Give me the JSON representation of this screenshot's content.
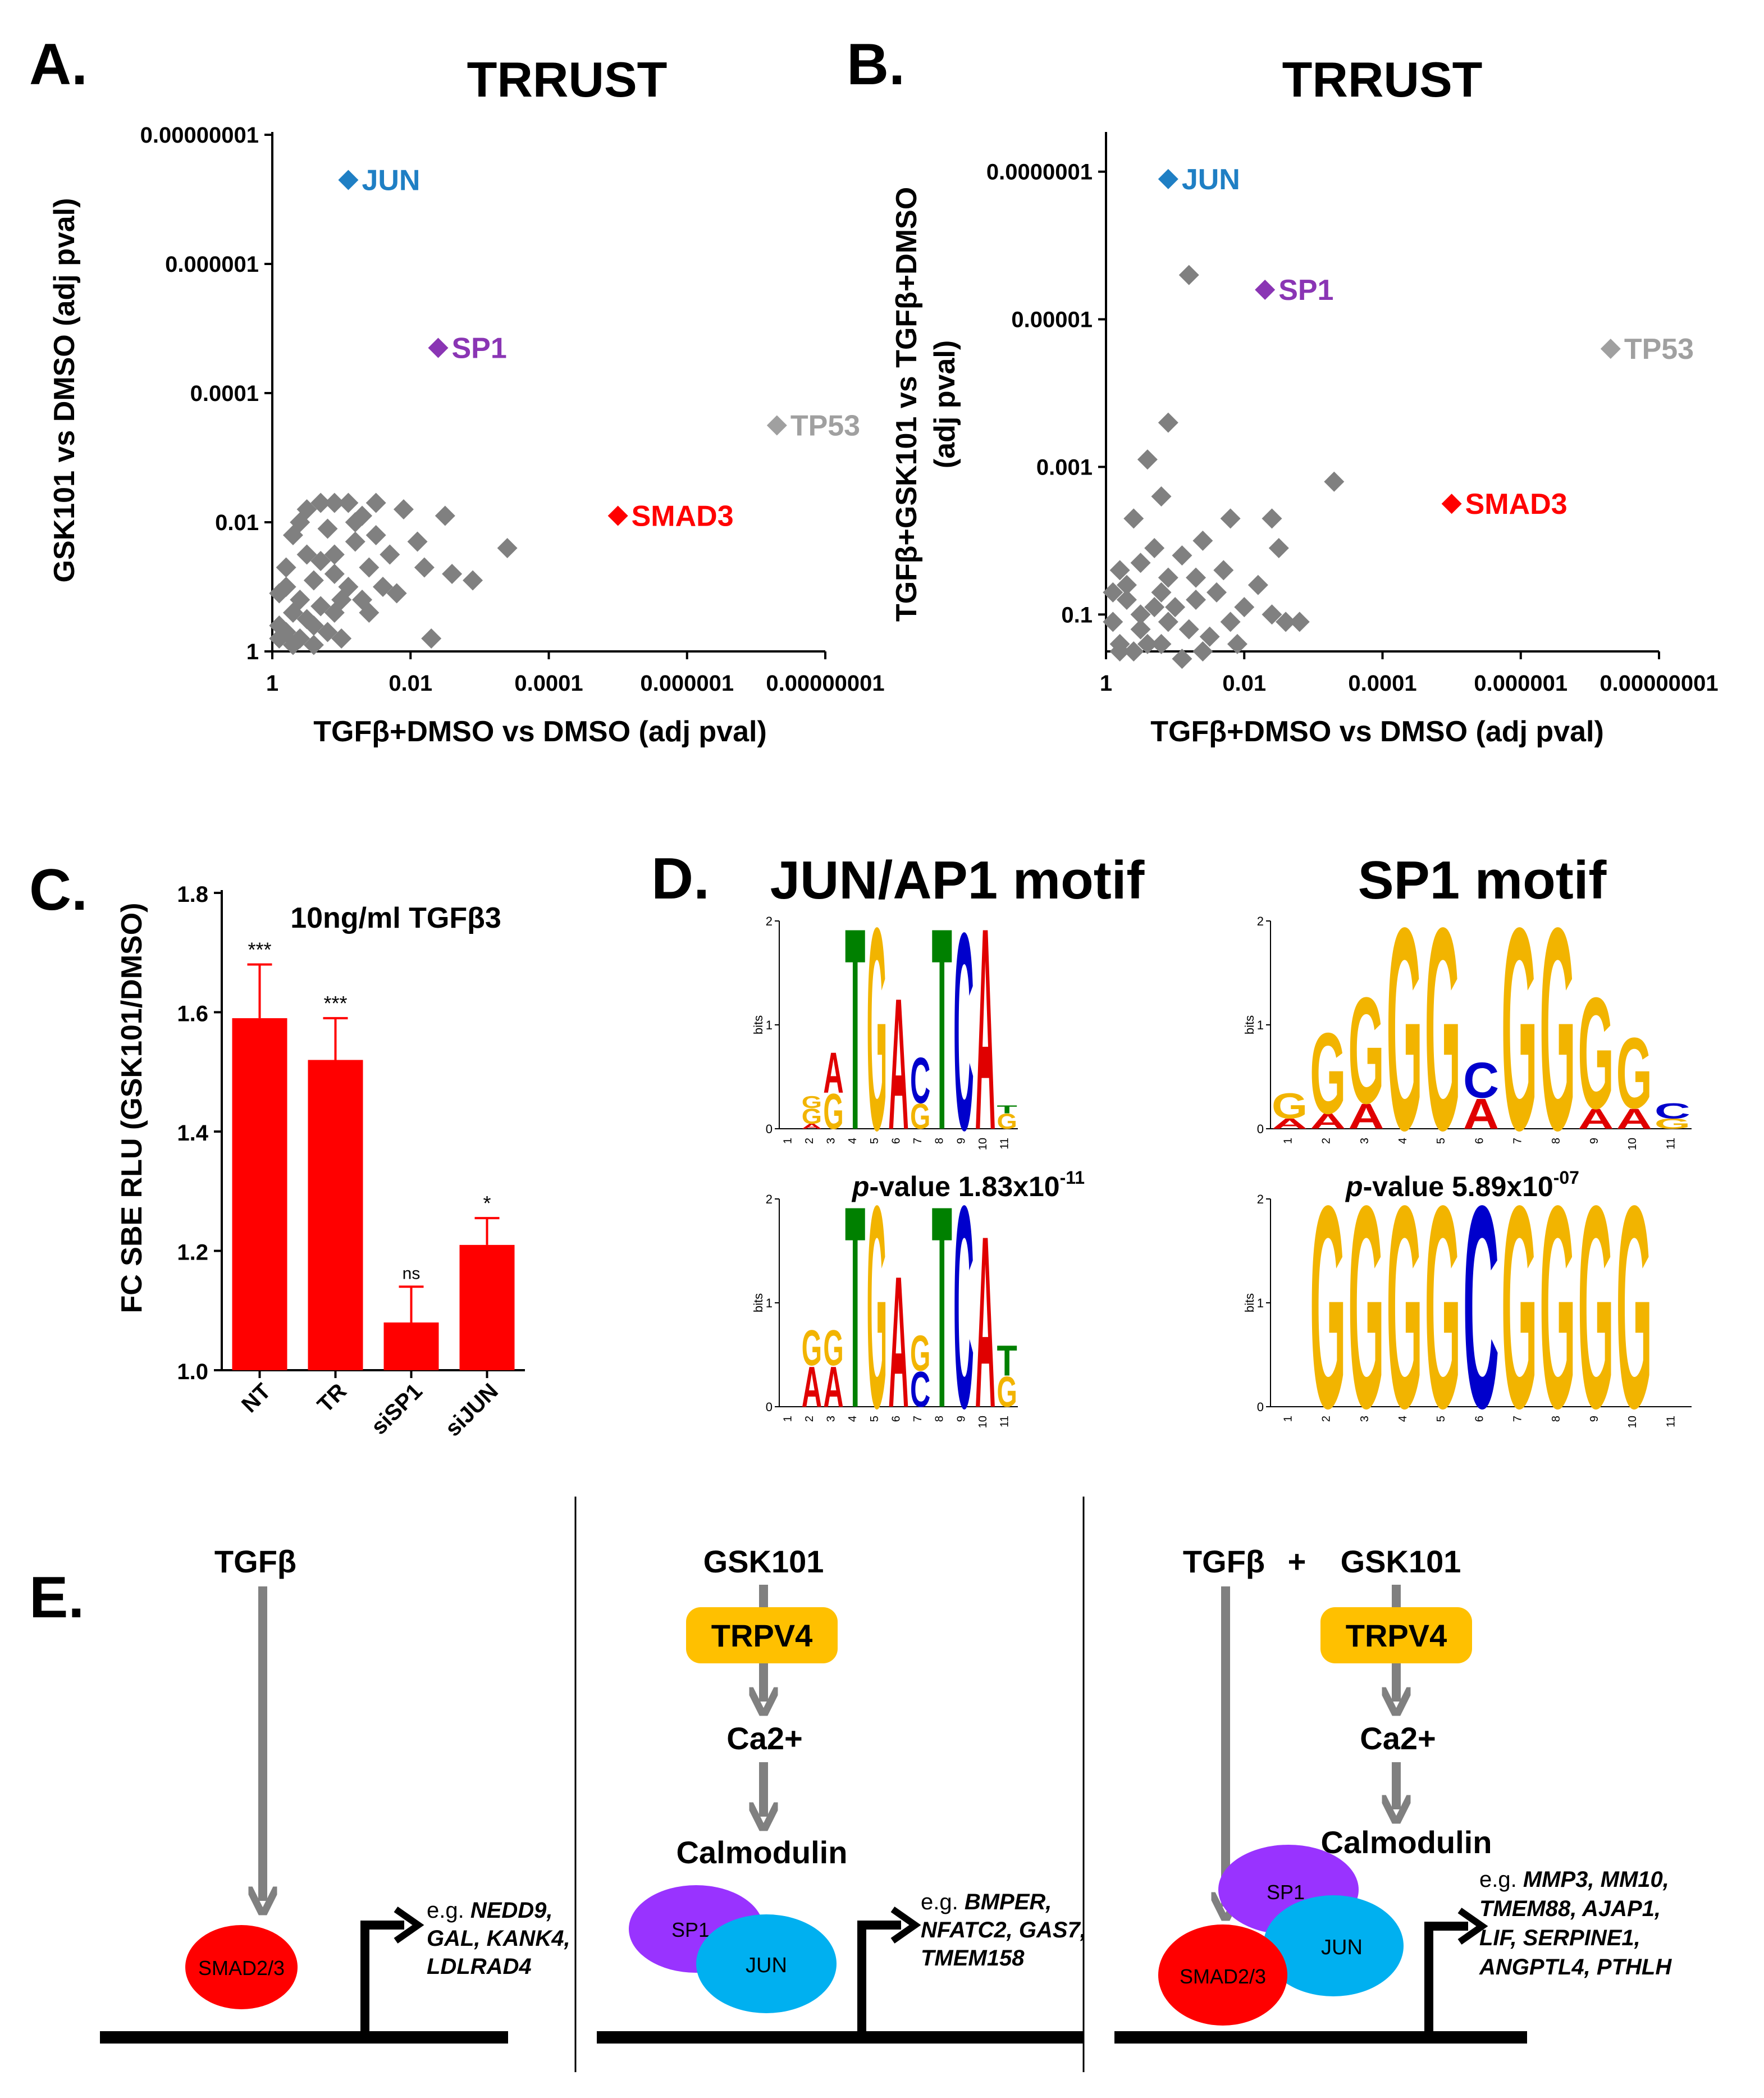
{
  "panel_letters": {
    "a": "A.",
    "b": "B.",
    "c": "C.",
    "d": "D.",
    "e": "E."
  },
  "colors": {
    "gray": "#808080",
    "jun": "#1f7fc4",
    "sp1": "#8a35b4",
    "smad3": "#ff0000",
    "tp53": "#a0a0a0",
    "red": "#ff0000",
    "sp1_ell": "#9933ff",
    "jun_ell": "#00b0f0",
    "trpv4": "#ffc000",
    "A": "#e00000",
    "C": "#0000cc",
    "G": "#f2b400",
    "T": "#008000"
  },
  "chart_data": [
    {
      "id": "A",
      "type": "scatter",
      "title": "TRRUST",
      "xlabel": "TGFβ+DMSO vs DMSO (adj pval)",
      "ylabel": "GSK101 vs DMSO (adj pval)",
      "xscale": "-log10",
      "yscale": "-log10",
      "xticks": [
        "1",
        "0.01",
        "0.0001",
        "0.000001",
        "0.00000001"
      ],
      "yticks": [
        "1",
        "0.01",
        "0.0001",
        "0.000001",
        "0.00000001"
      ],
      "xlim": [
        0,
        8
      ],
      "ylim": [
        0,
        8
      ],
      "highlighted": [
        {
          "name": "JUN",
          "x": 1.1,
          "y": 7.3,
          "color": "jun"
        },
        {
          "name": "SP1",
          "x": 2.4,
          "y": 4.7,
          "color": "sp1"
        },
        {
          "name": "TP53",
          "x": 7.3,
          "y": 3.5,
          "color": "tp53"
        },
        {
          "name": "SMAD3",
          "x": 5.0,
          "y": 2.1,
          "color": "smad3"
        }
      ],
      "background": [
        [
          0.4,
          2.0
        ],
        [
          0.7,
          2.3
        ],
        [
          0.9,
          2.3
        ],
        [
          1.1,
          2.3
        ],
        [
          1.3,
          2.1
        ],
        [
          1.5,
          2.3
        ],
        [
          0.8,
          1.9
        ],
        [
          1.2,
          1.7
        ],
        [
          0.5,
          1.5
        ],
        [
          1.4,
          1.3
        ],
        [
          0.9,
          1.2
        ],
        [
          0.6,
          1.1
        ],
        [
          1.1,
          1.0
        ],
        [
          0.2,
          1.0
        ],
        [
          0.4,
          0.8
        ],
        [
          0.7,
          0.7
        ],
        [
          0.3,
          0.6
        ],
        [
          0.5,
          0.5
        ],
        [
          0.9,
          0.6
        ],
        [
          1.3,
          0.8
        ],
        [
          0.2,
          0.3
        ],
        [
          0.4,
          0.2
        ],
        [
          0.1,
          0.4
        ],
        [
          0.6,
          0.1
        ],
        [
          0.8,
          0.3
        ],
        [
          1.7,
          1.5
        ],
        [
          2.1,
          1.7
        ],
        [
          2.5,
          2.1
        ],
        [
          2.2,
          1.3
        ],
        [
          2.6,
          1.2
        ],
        [
          2.9,
          1.1
        ],
        [
          3.4,
          1.6
        ],
        [
          1.8,
          0.9
        ],
        [
          2.3,
          0.2
        ],
        [
          0.3,
          1.8
        ],
        [
          0.9,
          1.5
        ],
        [
          0.2,
          1.3
        ],
        [
          1.0,
          0.2
        ],
        [
          1.6,
          1.0
        ],
        [
          0.5,
          2.2
        ],
        [
          1.2,
          2.0
        ],
        [
          0.1,
          0.9
        ],
        [
          0.3,
          0.1
        ],
        [
          1.5,
          1.8
        ],
        [
          0.7,
          1.4
        ],
        [
          1.9,
          2.2
        ],
        [
          0.6,
          0.4
        ],
        [
          1.4,
          0.6
        ],
        [
          1.0,
          0.8
        ],
        [
          0.1,
          0.2
        ]
      ]
    },
    {
      "id": "B",
      "type": "scatter",
      "title": "TRRUST",
      "xlabel": "TGFβ+DMSO vs DMSO (adj pval)",
      "ylabel_line1": "TGFβ+GSK101  vs TGFβ+DMSO",
      "ylabel_line2": "(adj pval)",
      "xscale": "-log10",
      "yscale": "-log10",
      "xticks": [
        "1",
        "0.01",
        "0.0001",
        "0.000001",
        "0.00000001"
      ],
      "yticks": [
        "0.1",
        "0.001",
        "0.00001",
        "0.0000001"
      ],
      "xlim": [
        0,
        8
      ],
      "ylim": [
        0.5,
        7.5
      ],
      "highlighted": [
        {
          "name": "JUN",
          "x": 0.9,
          "y": 6.9,
          "color": "jun"
        },
        {
          "name": "SP1",
          "x": 2.3,
          "y": 5.4,
          "color": "sp1"
        },
        {
          "name": "TP53",
          "x": 7.3,
          "y": 4.6,
          "color": "tp53"
        },
        {
          "name": "SMAD3",
          "x": 5.0,
          "y": 2.5,
          "color": "smad3"
        }
      ],
      "background": [
        [
          1.2,
          5.6
        ],
        [
          0.9,
          3.6
        ],
        [
          0.6,
          3.1
        ],
        [
          0.8,
          2.6
        ],
        [
          0.4,
          2.3
        ],
        [
          3.3,
          2.8
        ],
        [
          1.8,
          2.3
        ],
        [
          2.4,
          2.3
        ],
        [
          1.4,
          2.0
        ],
        [
          2.5,
          1.9
        ],
        [
          0.2,
          1.6
        ],
        [
          0.5,
          1.7
        ],
        [
          0.9,
          1.5
        ],
        [
          1.3,
          1.5
        ],
        [
          1.6,
          1.3
        ],
        [
          0.3,
          1.2
        ],
        [
          0.7,
          1.1
        ],
        [
          1.0,
          1.1
        ],
        [
          2.0,
          1.1
        ],
        [
          2.4,
          1.0
        ],
        [
          2.6,
          0.9
        ],
        [
          0.1,
          0.9
        ],
        [
          0.5,
          0.8
        ],
        [
          1.2,
          0.8
        ],
        [
          1.5,
          0.7
        ],
        [
          0.2,
          0.6
        ],
        [
          0.8,
          0.6
        ],
        [
          1.9,
          0.6
        ],
        [
          0.4,
          0.5
        ],
        [
          1.1,
          0.4
        ],
        [
          0.7,
          1.9
        ],
        [
          1.7,
          1.6
        ],
        [
          0.3,
          1.4
        ],
        [
          2.2,
          1.4
        ],
        [
          1.1,
          1.8
        ],
        [
          0.6,
          0.6
        ],
        [
          1.3,
          1.2
        ],
        [
          0.1,
          1.3
        ],
        [
          0.9,
          0.9
        ],
        [
          1.8,
          0.9
        ],
        [
          0.5,
          1.0
        ],
        [
          2.8,
          0.9
        ],
        [
          1.4,
          0.5
        ],
        [
          0.2,
          0.5
        ],
        [
          0.8,
          1.3
        ]
      ]
    },
    {
      "id": "C",
      "type": "bar",
      "title": "10ng/ml TGFβ3",
      "ylabel": "FC SBE RLU (GSK101/DMSO)",
      "xlabel": "",
      "categories": [
        "NT",
        "TR",
        "siSP1",
        "siJUN"
      ],
      "values": [
        1.59,
        1.52,
        1.08,
        1.21
      ],
      "errors": [
        0.09,
        0.07,
        0.06,
        0.045
      ],
      "significance": [
        "***",
        "***",
        "ns",
        "*"
      ],
      "ylim": [
        1.0,
        1.8
      ],
      "yticks": [
        "1.0",
        "1.2",
        "1.4",
        "1.6",
        "1.8"
      ]
    }
  ],
  "motifs": {
    "jun_title": "JUN/AP1 motif",
    "sp1_title": "SP1 motif",
    "jun_pvalue_prefix": "p",
    "jun_pvalue_text": "-value 1.83x10",
    "jun_pvalue_exp": "-11",
    "sp1_pvalue_prefix": "p",
    "sp1_pvalue_text": "-value 5.89x10",
    "sp1_pvalue_exp": "-07",
    "ylabel": "bits",
    "yticks": [
      "0",
      "1",
      "2"
    ],
    "positions": [
      "1",
      "2",
      "3",
      "4",
      "5",
      "6",
      "7",
      "8",
      "9",
      "10",
      "11"
    ],
    "logos": [
      {
        "id": "jun_top",
        "columns": [
          [],
          [
            [
              "A",
              0.05
            ],
            [
              "G",
              0.15
            ],
            [
              "G",
              0.12
            ]
          ],
          [
            [
              "G",
              0.35
            ],
            [
              "A",
              0.4
            ]
          ],
          [
            [
              "T",
              2.0
            ]
          ],
          [
            [
              "G",
              2.0
            ]
          ],
          [
            [
              "A",
              1.3
            ]
          ],
          [
            [
              "G",
              0.25
            ],
            [
              "C",
              0.45
            ]
          ],
          [
            [
              "T",
              2.0
            ]
          ],
          [
            [
              "C",
              1.95
            ]
          ],
          [
            [
              "A",
              2.0
            ]
          ],
          [
            [
              "G",
              0.15
            ],
            [
              "T",
              0.08
            ]
          ]
        ]
      },
      {
        "id": "jun_bottom",
        "columns": [
          [],
          [
            [
              "A",
              0.4
            ],
            [
              "G",
              0.35
            ]
          ],
          [
            [
              "A",
              0.4
            ],
            [
              "G",
              0.35
            ]
          ],
          [
            [
              "T",
              2.0
            ]
          ],
          [
            [
              "G",
              2.0
            ]
          ],
          [
            [
              "A",
              1.3
            ]
          ],
          [
            [
              "C",
              0.35
            ],
            [
              "G",
              0.35
            ]
          ],
          [
            [
              "T",
              2.0
            ]
          ],
          [
            [
              "C",
              2.0
            ]
          ],
          [
            [
              "A",
              1.7
            ]
          ],
          [
            [
              "G",
              0.3
            ],
            [
              "T",
              0.3
            ]
          ]
        ]
      },
      {
        "id": "sp1_top",
        "columns": [
          [
            [
              "A",
              0.1
            ],
            [
              "G",
              0.25
            ]
          ],
          [
            [
              "A",
              0.15
            ],
            [
              "G",
              0.8
            ]
          ],
          [
            [
              "A",
              0.25
            ],
            [
              "G",
              1.05
            ]
          ],
          [
            [
              "G",
              2.0
            ]
          ],
          [
            [
              "G",
              2.0
            ]
          ],
          [
            [
              "A",
              0.3
            ],
            [
              "C",
              0.35
            ]
          ],
          [
            [
              "G",
              2.0
            ]
          ],
          [
            [
              "G",
              2.0
            ]
          ],
          [
            [
              "A",
              0.2
            ],
            [
              "G",
              1.1
            ]
          ],
          [
            [
              "A",
              0.2
            ],
            [
              "G",
              0.7
            ]
          ],
          [
            [
              "G",
              0.1
            ],
            [
              "C",
              0.15
            ]
          ]
        ]
      },
      {
        "id": "sp1_bottom",
        "columns": [
          [],
          [
            [
              "G",
              2.0
            ]
          ],
          [
            [
              "G",
              2.0
            ]
          ],
          [
            [
              "G",
              2.0
            ]
          ],
          [
            [
              "G",
              2.0
            ]
          ],
          [
            [
              "C",
              2.0
            ]
          ],
          [
            [
              "G",
              2.0
            ]
          ],
          [
            [
              "G",
              2.0
            ]
          ],
          [
            [
              "G",
              2.0
            ]
          ],
          [
            [
              "G",
              2.0
            ]
          ],
          []
        ]
      }
    ]
  },
  "pathways": {
    "left": {
      "ligand": "TGFβ",
      "tf": "SMAD2/3",
      "genes_prefix": "e.g. ",
      "genes_line1": "NEDD9,",
      "genes_line2": "GAL, KANK4,",
      "genes_line3": "LDLRAD4"
    },
    "middle": {
      "ligand": "GSK101",
      "receptor": "TRPV4",
      "ion": "Ca2+",
      "mediator": "Calmodulin",
      "tf1": "SP1",
      "tf2": "JUN",
      "genes_prefix": "e.g. ",
      "genes_line1": "BMPER,",
      "genes_line2": "NFATC2, GAS7,",
      "genes_line3": "TMEM158"
    },
    "right": {
      "ligand1": "TGFβ",
      "plus": "+",
      "ligand2": "GSK101",
      "receptor": "TRPV4",
      "ion": "Ca2+",
      "mediator": "Calmodulin",
      "tf1": "SP1",
      "tf2": "JUN",
      "tf3": "SMAD2/3",
      "genes_prefix": "e.g. ",
      "genes_line1": "MMP3, MM10,",
      "genes_line2": "TMEM88, AJAP1,",
      "genes_line3": "LIF, SERPINE1,",
      "genes_line4": "ANGPTL4, PTHLH"
    }
  }
}
